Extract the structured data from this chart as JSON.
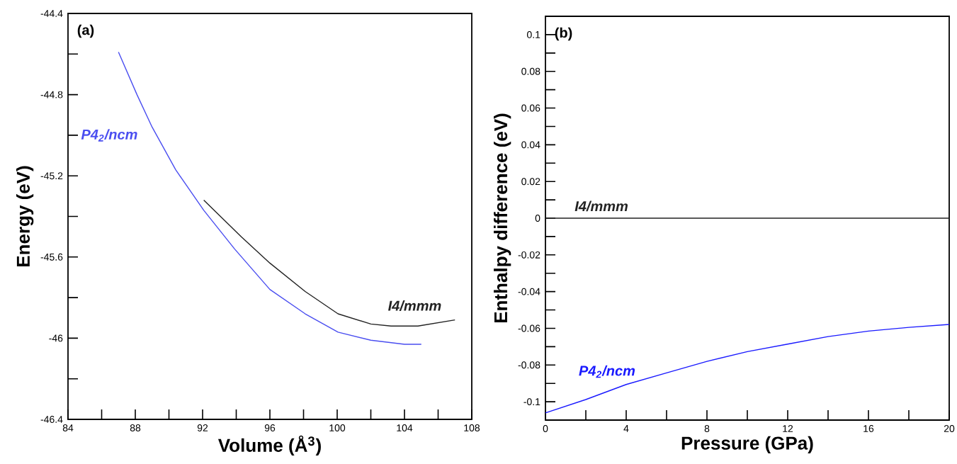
{
  "chart_data": [
    {
      "type": "line",
      "xlabel": "Volume (Å$^{3}$)",
      "ylabel": "Energy (eV)",
      "annotations": [
        "(a)"
      ],
      "xlim": [
        84,
        108
      ],
      "ylim": [
        -46.4,
        -44.4
      ],
      "xticks": [
        84,
        {
          "value": 86,
          "label": null
        },
        88,
        {
          "value": 90,
          "label": null
        },
        92,
        {
          "value": 94,
          "label": null
        },
        96,
        {
          "value": 98,
          "label": null
        },
        100,
        {
          "value": 102,
          "label": null
        },
        104,
        {
          "value": 106,
          "label": null
        },
        108
      ],
      "yticks": [
        -46.4,
        {
          "value": -46.2,
          "label": null
        },
        {
          "value": -46,
          "label": "-46"
        },
        {
          "value": -45.8,
          "label": null
        },
        -45.6,
        {
          "value": -45.4,
          "label": null
        },
        -45.2,
        {
          "value": -45,
          "label": null
        },
        -44.8,
        {
          "value": -44.6,
          "label": null
        },
        -44.4
      ],
      "series": [
        {
          "name": "P4$_{2}$/ncm",
          "color": "#4a4ef0",
          "x": [
            87.0,
            88.1,
            89.0,
            90.4,
            92.07,
            93.9,
            96.0,
            98.1,
            100.05,
            102.0,
            104.0,
            105.0
          ],
          "values": [
            -44.59,
            -44.8,
            -44.96,
            -45.17,
            -45.37,
            -45.56,
            -45.76,
            -45.88,
            -45.97,
            -46.01,
            -46.03,
            -46.03
          ]
        },
        {
          "name": "I4/mmm",
          "color": "#222222",
          "x": [
            92.07,
            94.3,
            96.0,
            98.1,
            100.05,
            102.0,
            103.2,
            104.8,
            107.0
          ],
          "values": [
            -45.32,
            -45.5,
            -45.63,
            -45.77,
            -45.88,
            -45.93,
            -45.94,
            -45.94,
            -45.91
          ]
        }
      ]
    },
    {
      "type": "line",
      "xlabel": "Pressure (GPa)",
      "ylabel": "Enthalpy difference (eV)",
      "annotations": [
        "(b)"
      ],
      "xlim": [
        0,
        20
      ],
      "ylim": [
        -0.11,
        0.11
      ],
      "xticks": [
        0,
        {
          "value": 2,
          "label": null
        },
        4,
        {
          "value": 6,
          "label": null
        },
        8,
        {
          "value": 10,
          "label": null
        },
        12,
        {
          "value": 14,
          "label": null
        },
        16,
        {
          "value": 18,
          "label": null
        },
        20
      ],
      "yticks": [
        -0.1,
        {
          "value": -0.09,
          "label": null
        },
        -0.08,
        {
          "value": -0.07,
          "label": null
        },
        -0.06,
        {
          "value": -0.05,
          "label": null
        },
        -0.04,
        {
          "value": -0.03,
          "label": null
        },
        -0.02,
        {
          "value": -0.01,
          "label": null
        },
        0,
        {
          "value": 0.01,
          "label": null
        },
        0.02,
        {
          "value": 0.03,
          "label": null
        },
        0.04,
        {
          "value": 0.05,
          "label": null
        },
        0.06,
        {
          "value": 0.07,
          "label": null
        },
        0.08,
        {
          "value": 0.09,
          "label": null
        },
        0.1
      ],
      "series": [
        {
          "name": "I4/mmm",
          "color": "#222222",
          "x": [
            0,
            20
          ],
          "values": [
            0,
            0
          ]
        },
        {
          "name": "P4$_{2}$/ncm",
          "color": "#1a1aff",
          "x": [
            0,
            2,
            4,
            6,
            8,
            10,
            12,
            14,
            16,
            18,
            20
          ],
          "values": [
            -0.1061,
            -0.0988,
            -0.0906,
            -0.0843,
            -0.078,
            -0.0727,
            -0.0686,
            -0.0645,
            -0.0615,
            -0.0595,
            -0.0579
          ]
        }
      ]
    }
  ]
}
